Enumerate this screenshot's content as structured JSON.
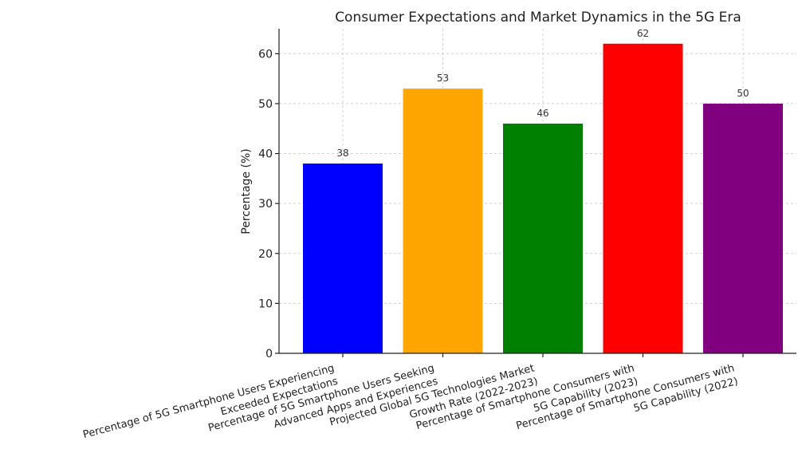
{
  "chart_data": {
    "type": "bar",
    "title": "Consumer Expectations and Market Dynamics in the 5G Era",
    "ylabel": "Percentage (%)",
    "xlabel": "",
    "ylim": [
      0,
      65
    ],
    "yticks": [
      0,
      10,
      20,
      30,
      40,
      50,
      60
    ],
    "grid": true,
    "categories": [
      [
        "Percentage of 5G Smartphone Users Experiencing",
        "Exceeded Expectations"
      ],
      [
        "Percentage of 5G Smartphone Users Seeking",
        "Advanced Apps and Experiences"
      ],
      [
        "Projected Global 5G Technologies Market",
        "Growth Rate (2022-2023)"
      ],
      [
        "Percentage of Smartphone Consumers with",
        "5G Capability (2023)"
      ],
      [
        "Percentage of Smartphone Consumers with",
        "5G Capability (2022)"
      ]
    ],
    "values": [
      38,
      53,
      46,
      62,
      50
    ],
    "colors": [
      "#0000ff",
      "#ffa500",
      "#008000",
      "#ff0000",
      "#800080"
    ]
  }
}
